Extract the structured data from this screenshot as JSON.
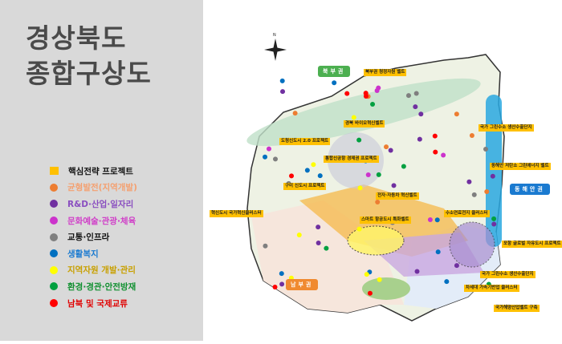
{
  "title_line1": "경상북도",
  "title_line2": "종합구상도",
  "legend": [
    {
      "label": "핵심전략 프로젝트",
      "color": "#ffc000",
      "text_color": "#111111",
      "shape": "square"
    },
    {
      "label": "균형발전(지역개발)",
      "color": "#ed7d31",
      "text_color": "#f4a070",
      "shape": "circle"
    },
    {
      "label": "R&D·산업·일자리",
      "color": "#7030a0",
      "text_color": "#8a4fc0",
      "shape": "circle"
    },
    {
      "label": "문화예술·관광·체육",
      "color": "#cc33cc",
      "text_color": "#d040c8",
      "shape": "circle"
    },
    {
      "label": "교통·인프라",
      "color": "#7f7f7f",
      "text_color": "#111111",
      "shape": "circle"
    },
    {
      "label": "생활복지",
      "color": "#0070c0",
      "text_color": "#1a7ad0",
      "shape": "circle"
    },
    {
      "label": "지역자원 개발·관리",
      "color": "#ffff00",
      "text_color": "#c8a000",
      "shape": "circle"
    },
    {
      "label": "환경·경관·안전방재",
      "color": "#00a040",
      "text_color": "#109030",
      "shape": "circle"
    },
    {
      "label": "남북 및 국제교류",
      "color": "#ff0000",
      "text_color": "#e00000",
      "shape": "circle"
    }
  ],
  "map": {
    "compass": "N",
    "regions": {
      "north": "북부권",
      "east": "동해안권",
      "south": "남부권"
    },
    "projects": [
      "북부권 청정자원 벨트",
      "경북 바이오혁신벨트",
      "도청신도시 2.0 프로젝트",
      "동해안 저탄소 그린에너지 벨트",
      "국가 그린수소 생산수출단지",
      "구미 신도시 프로젝트",
      "혁신도시 국가혁신클러스터",
      "통합신공항 경제권 프로젝트",
      "전자·자동차 혁신벨트",
      "수소연료전지 클러스터",
      "포항 글로벌 자유도시 프로젝트",
      "국가 그린수소 생산수출단지",
      "차세대 가속기반업 클러스터",
      "스마트 항공도시 특화벨트",
      "국가해양산업벨트 구축"
    ]
  }
}
